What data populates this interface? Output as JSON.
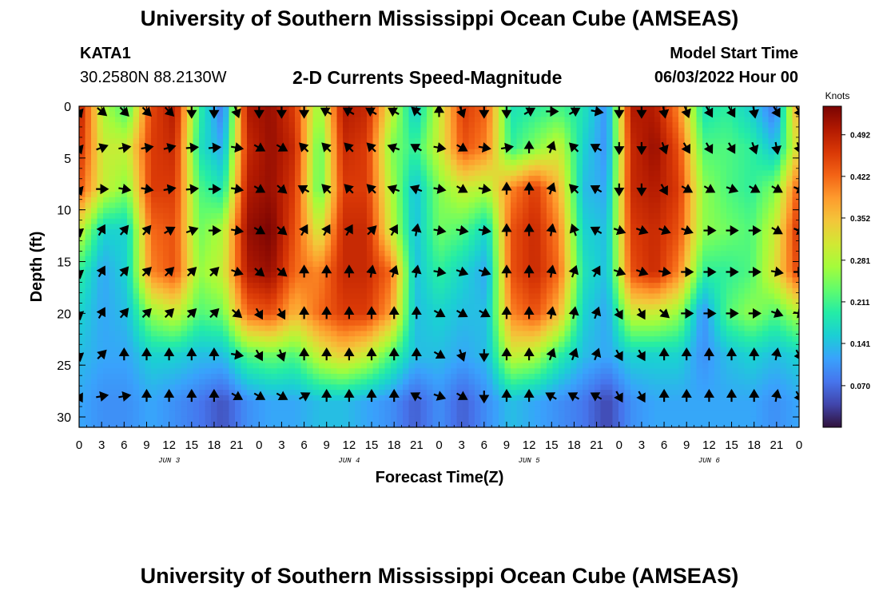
{
  "header": {
    "title": "University of Southern Mississippi Ocean Cube (AMSEAS)",
    "station": "KATA1",
    "coords": "30.2580N  88.2130W",
    "plot_title": "2-D Currents Speed-Magnitude",
    "start_label": "Model Start Time",
    "start_value": "06/03/2022 Hour 00"
  },
  "footer": {
    "title": "University of Southern Mississippi Ocean Cube (AMSEAS)"
  },
  "chart_data": {
    "type": "heatmap",
    "title": "2-D Currents Speed-Magnitude",
    "xlabel": "Forecast Time(Z)",
    "ylabel": "Depth (ft)",
    "xlim": [
      0,
      96
    ],
    "ylim": [
      0,
      31
    ],
    "x_ticks": [
      "0",
      "3",
      "6",
      "9",
      "12",
      "15",
      "18",
      "21",
      "0",
      "3",
      "6",
      "9",
      "12",
      "15",
      "18",
      "21",
      "0",
      "3",
      "6",
      "9",
      "12",
      "15",
      "18",
      "21",
      "0",
      "3",
      "6",
      "9",
      "12",
      "15",
      "18",
      "21",
      "0"
    ],
    "y_ticks": [
      0,
      5,
      10,
      15,
      20,
      25,
      30
    ],
    "date_labels": [
      {
        "label": "JUN 3",
        "hour": 12
      },
      {
        "label": "JUN 4",
        "hour": 36
      },
      {
        "label": "JUN 5",
        "hour": 60
      },
      {
        "label": "JUN 6",
        "hour": 84
      }
    ],
    "colorbar": {
      "label": "Knots",
      "min": 0,
      "max": 0.54,
      "ticks": [
        "0.492",
        "0.422",
        "0.352",
        "0.281",
        "0.211",
        "0.141",
        "0.070"
      ],
      "colors": [
        "#30123b",
        "#4145ab",
        "#4675ed",
        "#39a2fc",
        "#1bcfd4",
        "#24eca6",
        "#61fc6c",
        "#a4fc3b",
        "#d1e834",
        "#f3c63a",
        "#fe9b2d",
        "#f36315",
        "#d93806",
        "#b11901",
        "#7a0403"
      ]
    },
    "depth_levels": [
      0.5,
      4,
      8,
      12,
      16,
      20,
      24,
      28.5
    ],
    "speed_grid_knots": [
      [
        0.5,
        0.28,
        0.22,
        0.45,
        0.5,
        0.2,
        0.08,
        0.5,
        0.52,
        0.46,
        0.25,
        0.5,
        0.48,
        0.3,
        0.15,
        0.3,
        0.46,
        0.42,
        0.18,
        0.2,
        0.22,
        0.18,
        0.1,
        0.5,
        0.5,
        0.4,
        0.18,
        0.2,
        0.16,
        0.08,
        0.4
      ],
      [
        0.48,
        0.3,
        0.3,
        0.46,
        0.48,
        0.18,
        0.12,
        0.48,
        0.52,
        0.48,
        0.22,
        0.48,
        0.46,
        0.25,
        0.2,
        0.3,
        0.44,
        0.4,
        0.2,
        0.25,
        0.3,
        0.16,
        0.1,
        0.48,
        0.52,
        0.44,
        0.22,
        0.22,
        0.2,
        0.14,
        0.34
      ],
      [
        0.44,
        0.3,
        0.25,
        0.46,
        0.46,
        0.22,
        0.18,
        0.5,
        0.52,
        0.46,
        0.22,
        0.46,
        0.46,
        0.28,
        0.14,
        0.25,
        0.3,
        0.28,
        0.4,
        0.46,
        0.36,
        0.14,
        0.12,
        0.48,
        0.5,
        0.46,
        0.26,
        0.22,
        0.2,
        0.25,
        0.44
      ],
      [
        0.3,
        0.16,
        0.16,
        0.42,
        0.44,
        0.24,
        0.28,
        0.52,
        0.54,
        0.44,
        0.3,
        0.48,
        0.48,
        0.3,
        0.14,
        0.24,
        0.22,
        0.16,
        0.44,
        0.48,
        0.4,
        0.16,
        0.14,
        0.46,
        0.48,
        0.44,
        0.26,
        0.24,
        0.22,
        0.3,
        0.48
      ],
      [
        0.2,
        0.12,
        0.16,
        0.4,
        0.44,
        0.26,
        0.3,
        0.5,
        0.52,
        0.42,
        0.4,
        0.48,
        0.48,
        0.42,
        0.14,
        0.2,
        0.16,
        0.12,
        0.44,
        0.48,
        0.42,
        0.18,
        0.14,
        0.44,
        0.48,
        0.4,
        0.2,
        0.2,
        0.22,
        0.32,
        0.46
      ],
      [
        0.16,
        0.12,
        0.14,
        0.26,
        0.3,
        0.22,
        0.24,
        0.42,
        0.44,
        0.36,
        0.42,
        0.46,
        0.46,
        0.38,
        0.14,
        0.16,
        0.14,
        0.14,
        0.4,
        0.44,
        0.36,
        0.16,
        0.12,
        0.3,
        0.3,
        0.26,
        0.1,
        0.22,
        0.26,
        0.22,
        0.28
      ],
      [
        0.14,
        0.12,
        0.12,
        0.16,
        0.16,
        0.14,
        0.14,
        0.22,
        0.24,
        0.22,
        0.3,
        0.34,
        0.3,
        0.22,
        0.14,
        0.14,
        0.12,
        0.14,
        0.3,
        0.28,
        0.2,
        0.14,
        0.12,
        0.16,
        0.16,
        0.16,
        0.1,
        0.14,
        0.16,
        0.14,
        0.16
      ],
      [
        0.12,
        0.1,
        0.1,
        0.12,
        0.1,
        0.08,
        0.05,
        0.1,
        0.12,
        0.12,
        0.14,
        0.14,
        0.12,
        0.1,
        0.06,
        0.1,
        0.06,
        0.1,
        0.14,
        0.12,
        0.1,
        0.08,
        0.04,
        0.1,
        0.12,
        0.12,
        0.12,
        0.12,
        0.12,
        0.1,
        0.12
      ]
    ],
    "arrow_depths": [
      0.5,
      4,
      8,
      12,
      16,
      20,
      24,
      28
    ],
    "arrow_hours": [
      0,
      3,
      6,
      9,
      12,
      15,
      18,
      21,
      24,
      27,
      30,
      33,
      36,
      39,
      42,
      45,
      48,
      51,
      54,
      57,
      60,
      63,
      66,
      69,
      72,
      75,
      78,
      81,
      84,
      87,
      90,
      93,
      96
    ],
    "arrow_directions_deg": [
      [
        160,
        130,
        135,
        135,
        135,
        180,
        180,
        160,
        180,
        180,
        180,
        300,
        300,
        300,
        300,
        310,
        0,
        160,
        180,
        180,
        60,
        90,
        60,
        100,
        180,
        180,
        170,
        160,
        150,
        150,
        170,
        150,
        150
      ],
      [
        160,
        70,
        80,
        80,
        75,
        85,
        85,
        100,
        120,
        120,
        315,
        315,
        315,
        315,
        290,
        300,
        100,
        120,
        100,
        80,
        0,
        20,
        315,
        300,
        180,
        180,
        160,
        150,
        150,
        150,
        160,
        170,
        160
      ],
      [
        160,
        90,
        100,
        100,
        80,
        85,
        90,
        100,
        120,
        130,
        300,
        315,
        315,
        315,
        290,
        290,
        100,
        120,
        100,
        0,
        0,
        20,
        315,
        300,
        180,
        180,
        150,
        120,
        120,
        110,
        120,
        120,
        110
      ],
      [
        170,
        30,
        40,
        40,
        60,
        70,
        90,
        100,
        120,
        130,
        30,
        30,
        30,
        45,
        30,
        10,
        100,
        100,
        100,
        0,
        0,
        10,
        340,
        300,
        110,
        110,
        110,
        110,
        90,
        90,
        90,
        120,
        110
      ],
      [
        170,
        30,
        40,
        45,
        45,
        45,
        45,
        110,
        130,
        130,
        0,
        0,
        0,
        10,
        20,
        10,
        100,
        110,
        110,
        0,
        0,
        10,
        20,
        30,
        110,
        110,
        100,
        90,
        90,
        90,
        90,
        100,
        90
      ],
      [
        170,
        30,
        40,
        45,
        45,
        45,
        45,
        130,
        150,
        150,
        0,
        0,
        0,
        0,
        0,
        0,
        120,
        120,
        120,
        0,
        0,
        10,
        10,
        20,
        150,
        150,
        130,
        90,
        90,
        90,
        90,
        110,
        100
      ],
      [
        170,
        45,
        0,
        0,
        0,
        0,
        0,
        100,
        150,
        160,
        0,
        0,
        0,
        0,
        0,
        0,
        120,
        160,
        180,
        0,
        0,
        20,
        20,
        20,
        150,
        150,
        0,
        0,
        0,
        0,
        0,
        10,
        150
      ],
      [
        150,
        80,
        80,
        0,
        0,
        0,
        0,
        120,
        120,
        120,
        60,
        0,
        0,
        0,
        0,
        300,
        110,
        120,
        180,
        0,
        0,
        300,
        300,
        300,
        150,
        150,
        0,
        0,
        0,
        0,
        0,
        10,
        150
      ]
    ]
  }
}
